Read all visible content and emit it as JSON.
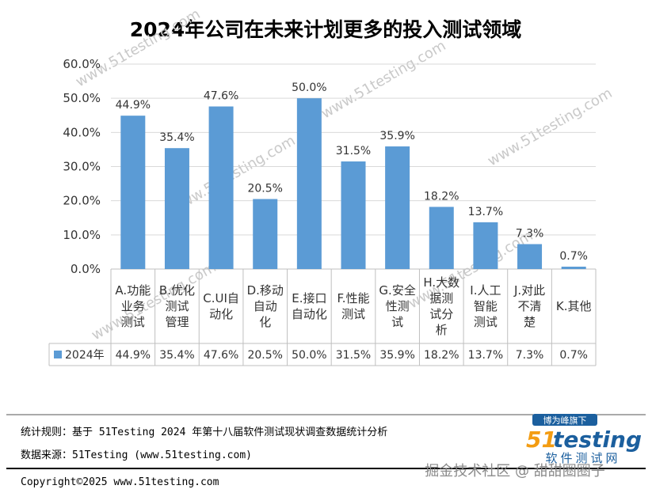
{
  "chart_data": {
    "type": "bar",
    "title": "2024年公司在未来计划更多的投入测试领域",
    "categories": [
      [
        "A.功能",
        "业务",
        "测试"
      ],
      [
        "B.优化",
        "测试",
        "管理"
      ],
      [
        "C.UI自",
        "动化"
      ],
      [
        "D.移动",
        "自动",
        "化"
      ],
      [
        "E.接口",
        "自动化"
      ],
      [
        "F.性能",
        "测试"
      ],
      [
        "G.安全",
        "性测",
        "试"
      ],
      [
        "H.大数",
        "据测",
        "试分",
        "析"
      ],
      [
        "I.人工",
        "智能",
        "测试"
      ],
      [
        "J.对此",
        "不清",
        "楚"
      ],
      [
        "K.其他"
      ]
    ],
    "series": [
      {
        "name": "2024年",
        "color": "#5b9bd5",
        "values": [
          44.9,
          35.4,
          47.6,
          20.5,
          50.0,
          31.5,
          35.9,
          18.2,
          13.7,
          7.3,
          0.7
        ]
      }
    ],
    "value_labels": [
      "44.9%",
      "35.4%",
      "47.6%",
      "20.5%",
      "50.0%",
      "31.5%",
      "35.9%",
      "18.2%",
      "13.7%",
      "7.3%",
      "0.7%"
    ],
    "ylim": [
      0,
      60
    ],
    "yticks": [
      "0.0%",
      "10.0%",
      "20.0%",
      "30.0%",
      "40.0%",
      "50.0%",
      "60.0%"
    ],
    "grid": true,
    "data_table": true
  },
  "footer": {
    "rule": "统计规则：基于 51Testing 2024 年第十八届软件测试现状调查数据统计分析",
    "source": "数据来源：51Testing (www.51testing.com)",
    "copyright": "Copyright©2025 www.51testing.com"
  },
  "logo": {
    "tag": "博为峰旗下",
    "name_51": "51",
    "name_testing": "testing",
    "subtitle": "软件测试网"
  },
  "watermark": {
    "site": "www.51testing.com",
    "credit": "掘金技术社区 @ 甜甜圈圈子"
  }
}
